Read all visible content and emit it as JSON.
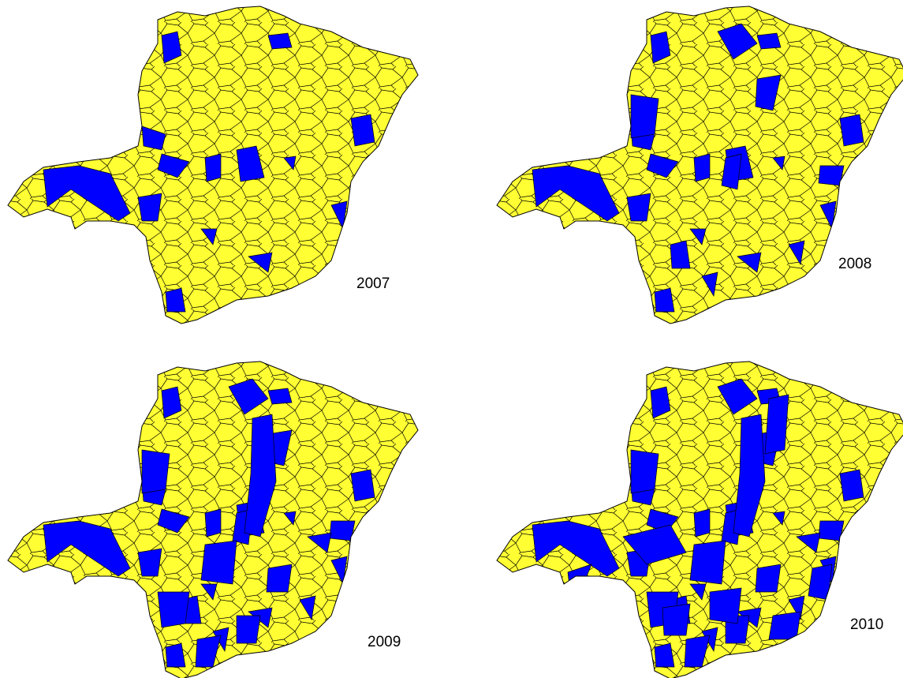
{
  "panels": [
    {
      "year": "2007"
    },
    {
      "year": "2008"
    },
    {
      "year": "2009"
    },
    {
      "year": "2010"
    }
  ]
}
